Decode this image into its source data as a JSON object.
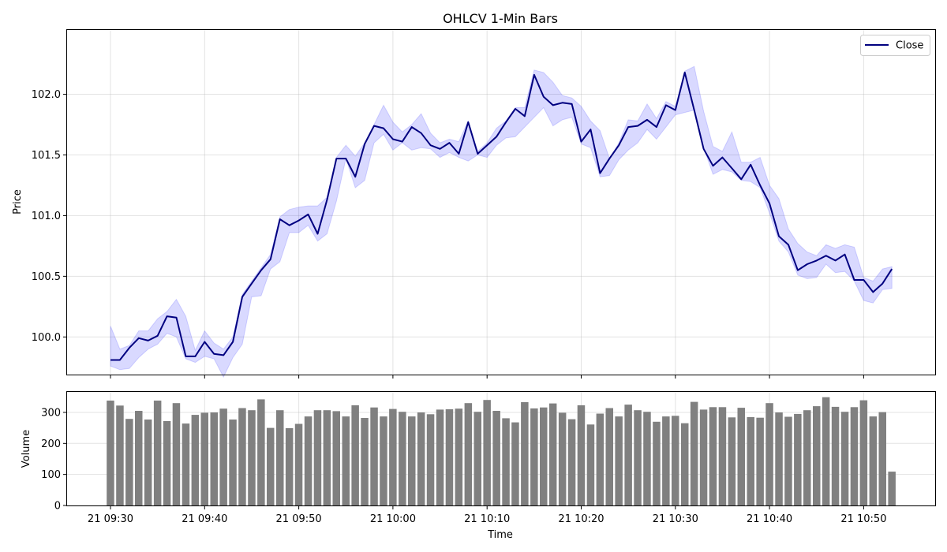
{
  "chart_data": [
    {
      "type": "line",
      "title": "OHLCV 1-Min Bars",
      "ylabel": "Price",
      "xlabel": "",
      "ylim": [
        99.69,
        102.53
      ],
      "yticks": [
        "100.0",
        "100.5",
        "101.0",
        "101.5",
        "102.0"
      ],
      "ytick_values": [
        100.0,
        100.5,
        101.0,
        101.5,
        102.0
      ],
      "grid": true,
      "legend": {
        "position": "top-right",
        "entries": [
          "Close"
        ]
      },
      "colors": {
        "close": "#000080",
        "band": "#0000ff"
      },
      "series": [
        {
          "name": "Close",
          "values": [
            99.81,
            99.81,
            99.91,
            99.99,
            99.97,
            100.01,
            100.17,
            100.16,
            99.84,
            99.84,
            99.96,
            99.86,
            99.85,
            99.96,
            100.33,
            100.44,
            100.55,
            100.64,
            100.97,
            100.92,
            100.96,
            101.01,
            100.85,
            101.13,
            101.47,
            101.47,
            101.32,
            101.59,
            101.74,
            101.72,
            101.63,
            101.61,
            101.73,
            101.68,
            101.58,
            101.55,
            101.6,
            101.51,
            101.77,
            101.51,
            101.58,
            101.65,
            101.77,
            101.88,
            101.82,
            102.16,
            101.98,
            101.91,
            101.93,
            101.92,
            101.61,
            101.71,
            101.35,
            101.47,
            101.58,
            101.73,
            101.74,
            101.79,
            101.73,
            101.91,
            101.87,
            102.18,
            101.87,
            101.55,
            101.41,
            101.48,
            101.39,
            101.3,
            101.42,
            101.25,
            101.1,
            100.83,
            100.76,
            100.55,
            100.6,
            100.63,
            100.67,
            100.63,
            100.68,
            100.47,
            100.47,
            100.37,
            100.44,
            100.56
          ]
        },
        {
          "name": "",
          "role": "high",
          "values": [
            100.09,
            99.9,
            99.93,
            100.05,
            100.05,
            100.15,
            100.21,
            100.31,
            100.17,
            99.89,
            100.05,
            99.95,
            99.9,
            100.0,
            100.35,
            100.46,
            100.57,
            100.68,
            100.99,
            101.05,
            101.07,
            101.08,
            101.08,
            101.15,
            101.48,
            101.58,
            101.49,
            101.6,
            101.75,
            101.91,
            101.77,
            101.69,
            101.75,
            101.84,
            101.68,
            101.6,
            101.63,
            101.61,
            101.78,
            101.53,
            101.6,
            101.72,
            101.78,
            101.89,
            101.89,
            102.2,
            102.18,
            102.1,
            101.99,
            101.97,
            101.9,
            101.78,
            101.7,
            101.47,
            101.6,
            101.79,
            101.78,
            101.92,
            101.8,
            101.94,
            101.9,
            102.19,
            102.23,
            101.86,
            101.57,
            101.53,
            101.69,
            101.44,
            101.44,
            101.48,
            101.25,
            101.14,
            100.89,
            100.77,
            100.7,
            100.67,
            100.76,
            100.73,
            100.76,
            100.74,
            100.49,
            100.46,
            100.56,
            100.58
          ]
        },
        {
          "name": "",
          "role": "low",
          "values": [
            99.76,
            99.73,
            99.74,
            99.83,
            99.9,
            99.94,
            100.03,
            100.0,
            99.82,
            99.79,
            99.84,
            99.82,
            99.67,
            99.83,
            99.94,
            100.33,
            100.34,
            100.56,
            100.62,
            100.86,
            100.86,
            100.92,
            100.79,
            100.85,
            101.12,
            101.47,
            101.23,
            101.29,
            101.6,
            101.67,
            101.54,
            101.6,
            101.54,
            101.56,
            101.55,
            101.48,
            101.52,
            101.48,
            101.45,
            101.5,
            101.48,
            101.58,
            101.64,
            101.65,
            101.73,
            101.81,
            101.89,
            101.74,
            101.79,
            101.81,
            101.59,
            101.56,
            101.32,
            101.33,
            101.46,
            101.54,
            101.6,
            101.71,
            101.63,
            101.73,
            101.83,
            101.85,
            101.87,
            101.56,
            101.34,
            101.38,
            101.36,
            101.29,
            101.28,
            101.23,
            101.02,
            100.79,
            100.7,
            100.51,
            100.48,
            100.49,
            100.6,
            100.53,
            100.54,
            100.46,
            100.3,
            100.28,
            100.39,
            100.4
          ]
        }
      ]
    },
    {
      "type": "bar",
      "ylabel": "Volume",
      "xlabel": "Time",
      "ylim": [
        0,
        366
      ],
      "yticks": [
        "0",
        "100",
        "200",
        "300"
      ],
      "ytick_values": [
        0,
        100,
        200,
        300
      ],
      "grid": true,
      "xticks": [
        "21 09:30",
        "21 09:40",
        "21 09:50",
        "21 10:00",
        "21 10:10",
        "21 10:20",
        "21 10:30",
        "21 10:40",
        "21 10:50"
      ],
      "xtick_minutes": [
        0,
        10,
        20,
        30,
        40,
        50,
        60,
        70,
        80
      ],
      "bar_color": "#808080",
      "x_minutes": [
        0,
        1,
        2,
        3,
        4,
        5,
        6,
        7,
        8,
        9,
        10,
        11,
        12,
        13,
        14,
        15,
        16,
        17,
        18,
        19,
        20,
        21,
        22,
        23,
        24,
        25,
        26,
        27,
        28,
        29,
        30,
        31,
        32,
        33,
        34,
        35,
        36,
        37,
        38,
        39,
        40,
        41,
        42,
        43,
        44,
        45,
        46,
        47,
        48,
        49,
        50,
        51,
        52,
        53,
        54,
        55,
        56,
        57,
        58,
        59,
        60,
        61,
        62,
        63,
        64,
        65,
        66,
        67,
        68,
        69,
        70,
        71,
        72,
        73,
        74,
        75,
        76,
        77,
        78,
        79,
        80,
        81,
        82,
        83
      ],
      "values": [
        338,
        322,
        279,
        305,
        277,
        338,
        272,
        330,
        264,
        292,
        299,
        300,
        312,
        277,
        314,
        307,
        342,
        250,
        307,
        249,
        263,
        287,
        307,
        307,
        304,
        287,
        323,
        282,
        316,
        287,
        311,
        302,
        287,
        300,
        294,
        309,
        310,
        312,
        330,
        302,
        340,
        305,
        281,
        268,
        333,
        313,
        316,
        329,
        299,
        278,
        323,
        261,
        296,
        314,
        287,
        325,
        307,
        302,
        270,
        287,
        289,
        265,
        334,
        309,
        317,
        317,
        284,
        315,
        285,
        283,
        330,
        300,
        286,
        295,
        307,
        320,
        349,
        318,
        302,
        317,
        339,
        287,
        301,
        109
      ]
    }
  ]
}
